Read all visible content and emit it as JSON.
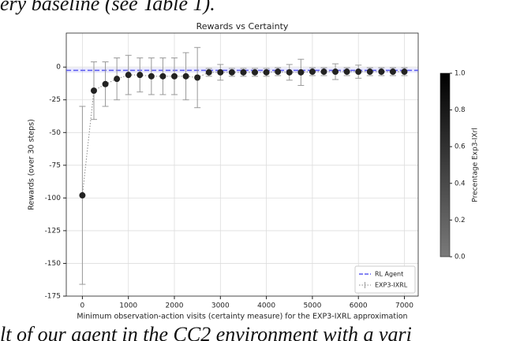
{
  "text_top": "ery baseline (see Table 1).",
  "text_bottom": "lt of our agent in the CC2 environment with a vari",
  "chart_data": {
    "type": "errorbar",
    "title": "Rewards vs Certainty",
    "xlabel": "Minimum observation-action visits (certainty measure) for the EXP3-IXRL approximation",
    "ylabel": "Rewards (over 30 steps)",
    "xlim": [
      -350,
      7300
    ],
    "ylim": [
      -175,
      26
    ],
    "xticks": [
      0,
      1000,
      2000,
      3000,
      4000,
      5000,
      6000,
      7000
    ],
    "yticks": [
      0,
      -25,
      -50,
      -75,
      -100,
      -125,
      -150,
      -175
    ],
    "grid": true,
    "reference": {
      "name": "RL Agent",
      "value": -2.5,
      "color": "#5b5bf0"
    },
    "series": [
      {
        "name": "EXP3-IXRL",
        "color": "#222222",
        "x": [
          0,
          250,
          500,
          750,
          1000,
          1250,
          1500,
          1750,
          2000,
          2250,
          2500,
          2750,
          3000,
          3250,
          3500,
          3750,
          4000,
          4250,
          4500,
          4750,
          5000,
          5250,
          5500,
          5750,
          6000,
          6250,
          6500,
          6750,
          7000
        ],
        "values": [
          -98,
          -18,
          -13,
          -9,
          -6,
          -6,
          -7,
          -7,
          -7,
          -7,
          -8,
          -4,
          -4,
          -4,
          -4,
          -4,
          -4,
          -3.5,
          -4,
          -4,
          -3.5,
          -3.5,
          -3.5,
          -3.5,
          -3.5,
          -3.5,
          -3.5,
          -3.5,
          -3.5
        ],
        "errors": [
          68,
          22,
          17,
          16,
          15,
          13,
          14,
          14,
          14,
          18,
          23,
          3,
          6,
          3,
          3,
          3,
          3,
          3,
          6,
          10,
          3,
          3,
          6,
          3,
          5,
          3,
          3,
          3,
          3
        ]
      }
    ],
    "legend": "lower right",
    "colorbar": {
      "label": "Precentage Exp3-IXrl",
      "lim": [
        0,
        1
      ],
      "colors": [
        "#7a7a7a",
        "#000000"
      ],
      "ticks": [
        {
          "value": 0,
          "label": "0.0"
        },
        {
          "value": 0.2,
          "label": "0.2"
        },
        {
          "value": 0.4,
          "label": "0.4"
        },
        {
          "value": 0.6,
          "label": "0.6"
        },
        {
          "value": 0.8,
          "label": "0.8"
        },
        {
          "value": 1,
          "label": "1.0"
        }
      ]
    }
  }
}
